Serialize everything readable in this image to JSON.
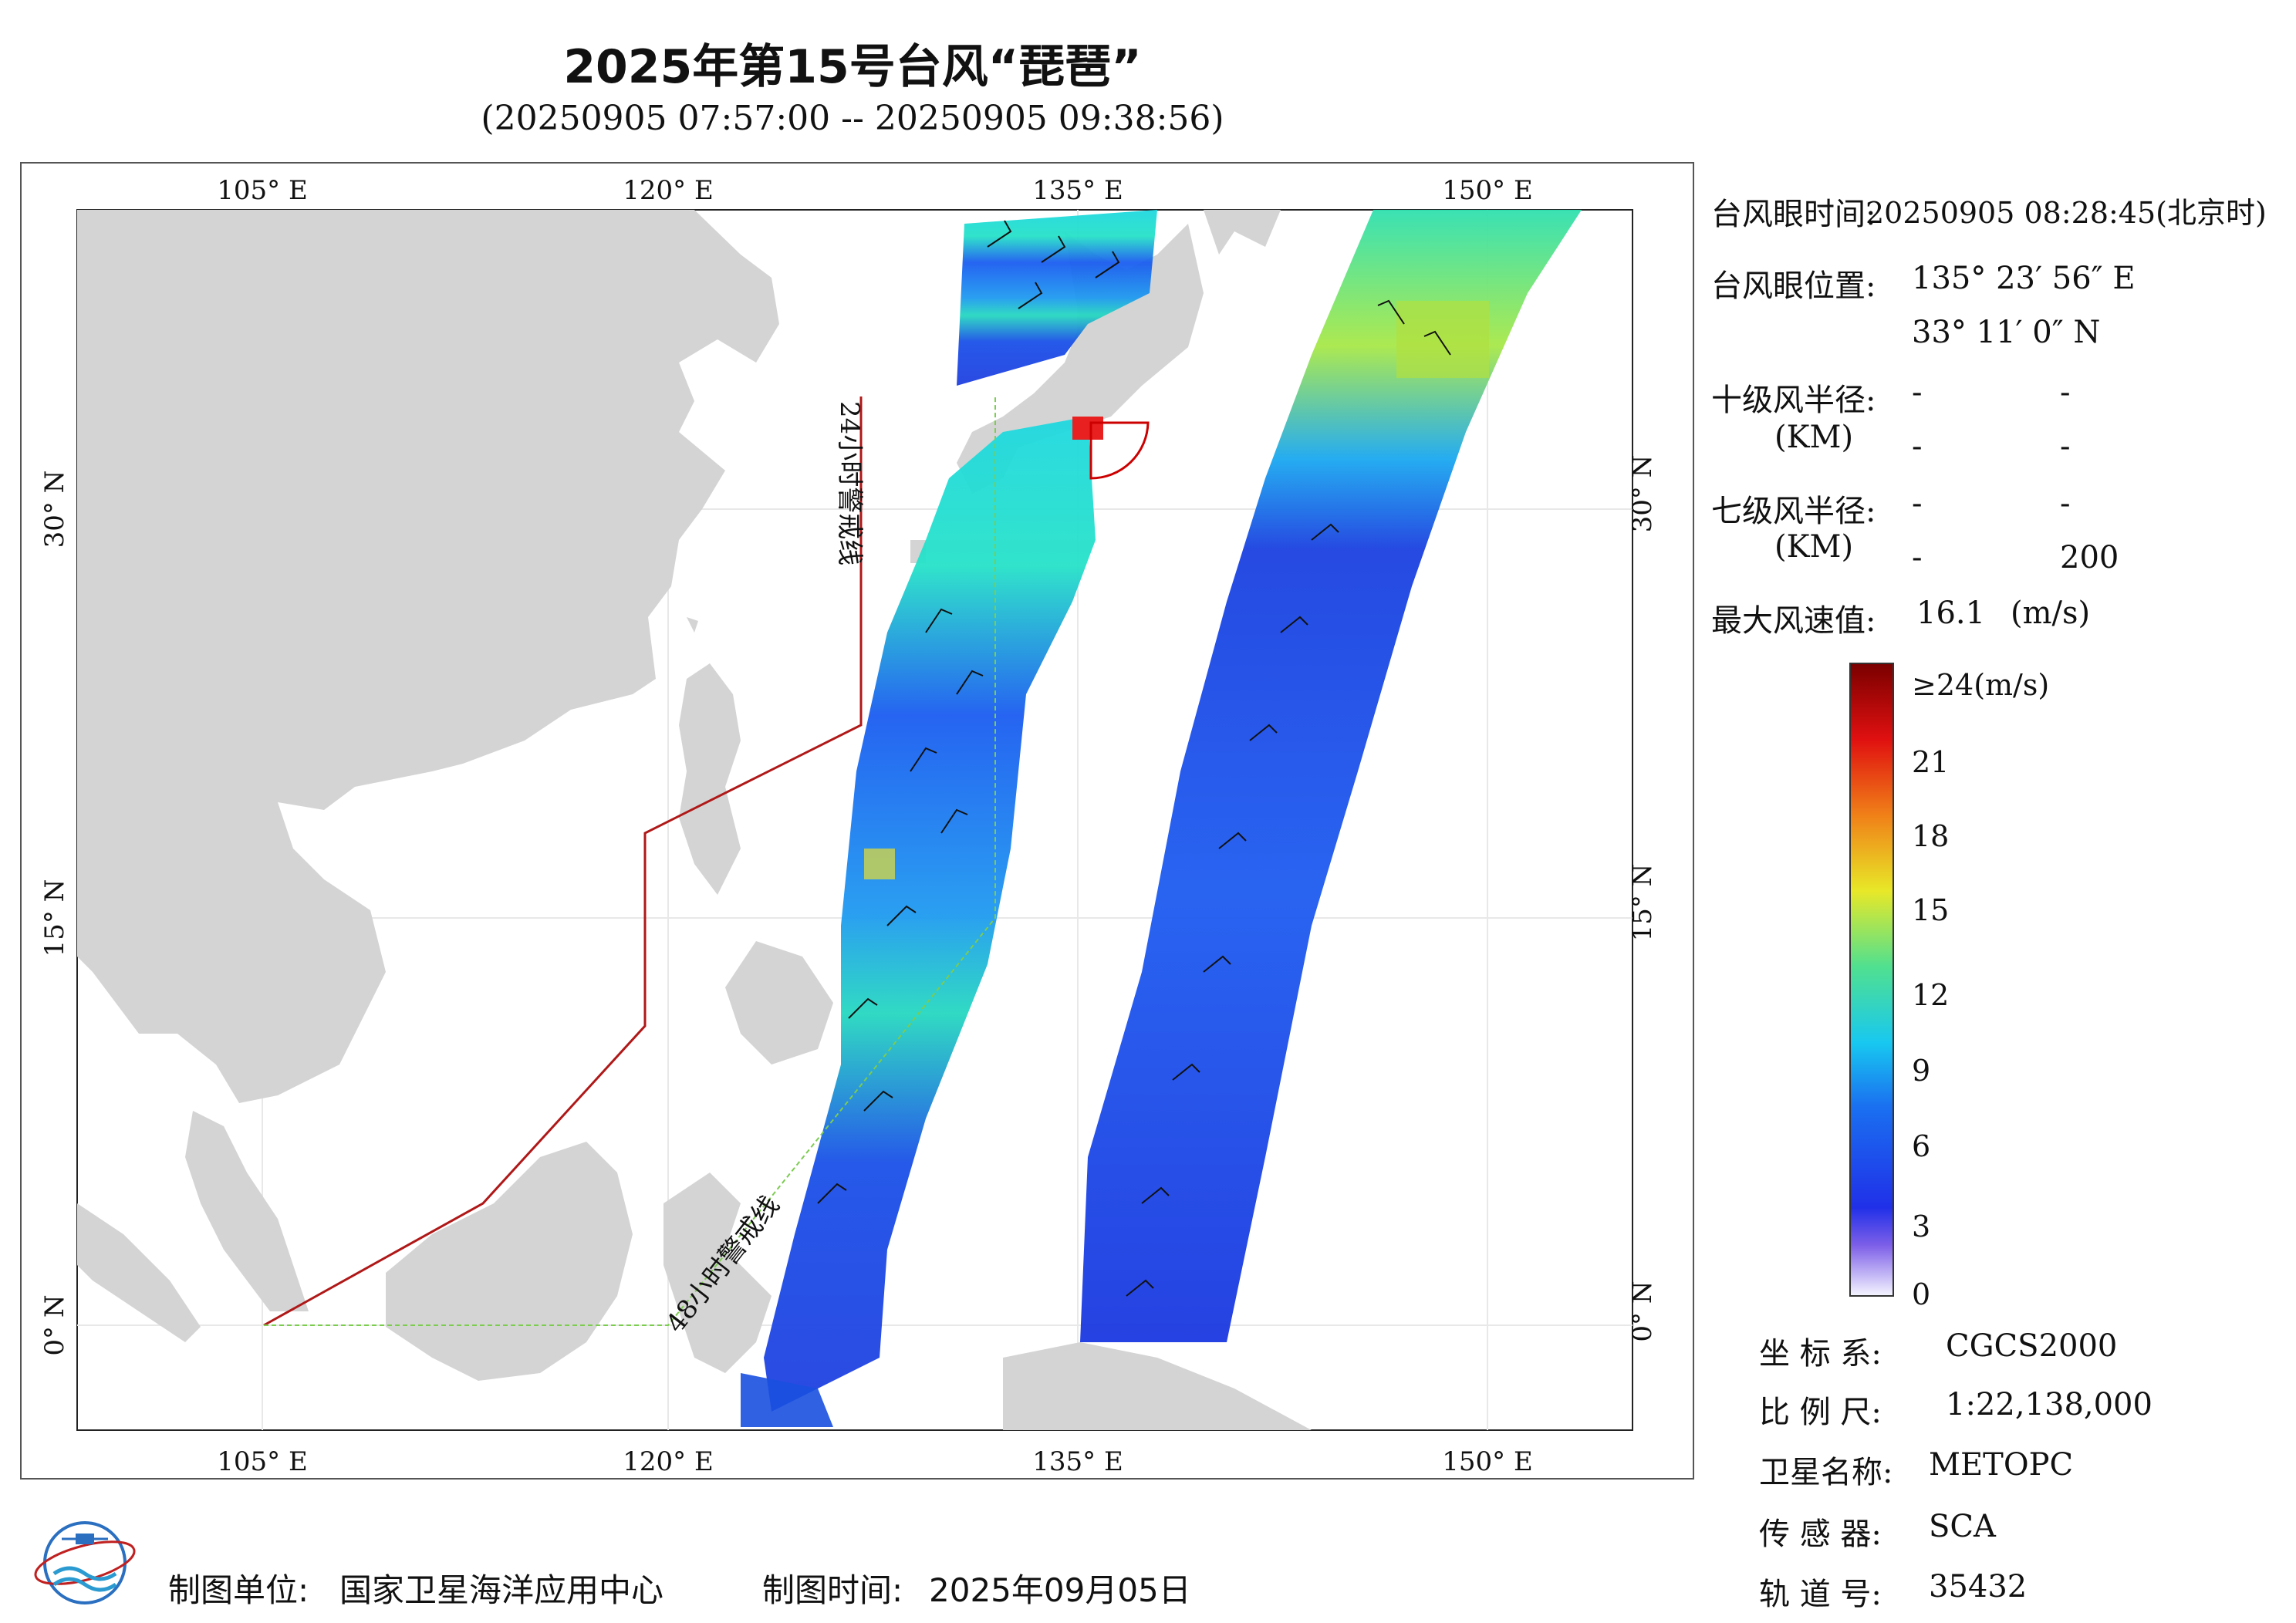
{
  "title": "2025年第15号台风“琵琶”",
  "subtitle": "(20250905 07:57:00 -- 20250905 09:38:56)",
  "axes": {
    "lon_labels": [
      "105° E",
      "120° E",
      "135° E",
      "150° E"
    ],
    "lat_labels": [
      "30° N",
      "15° N",
      "0° N"
    ]
  },
  "warning_lines": {
    "line24": "24小时警戒线",
    "line48": "48小时警戒线"
  },
  "info": {
    "eye_time_label": "台风眼时间:",
    "eye_time_value": "20250905 08:28:45(北京时)",
    "eye_pos_label": "台风眼位置:",
    "eye_lon": "135° 23′ 56″ E",
    "eye_lat": "33° 11′ 0″ N",
    "r10_label": "十级风半径:",
    "r10_unit": "(KM)",
    "r10_row1_a": "-",
    "r10_row1_b": "-",
    "r10_row2_a": "-",
    "r10_row2_b": "-",
    "r7_label": "七级风半径:",
    "r7_unit": "(KM)",
    "r7_row1_a": "-",
    "r7_row1_b": "-",
    "r7_row2_a": "-",
    "r7_row2_b": "200",
    "max_wind_label": "最大风速值:",
    "max_wind_value": "16.1",
    "max_wind_unit": "(m/s)"
  },
  "legend": {
    "ticks": [
      "≥24(m/s)",
      "21",
      "18",
      "15",
      "12",
      "9",
      "6",
      "3",
      "0"
    ],
    "colors": [
      "#f5f5ff",
      "#7d5fe8",
      "#2030e8",
      "#1a70f0",
      "#18c8f0",
      "#50e090",
      "#e8e828",
      "#f08018",
      "#e01010",
      "#7a0000"
    ]
  },
  "meta": {
    "crs_label": "坐 标 系:",
    "crs_value": "CGCS2000",
    "scale_label": "比 例 尺:",
    "scale_value": "1:22,138,000",
    "sat_label": "卫星名称:",
    "sat_value": "METOPC",
    "sensor_label": "传 感 器:",
    "sensor_value": "SCA",
    "orbit_label": "轨 道 号:",
    "orbit_value": "35432"
  },
  "footer": {
    "unit_label": "制图单位:",
    "unit_value": "国家卫星海洋应用中心",
    "time_label": "制图时间:",
    "time_value": "2025年09月05日"
  }
}
